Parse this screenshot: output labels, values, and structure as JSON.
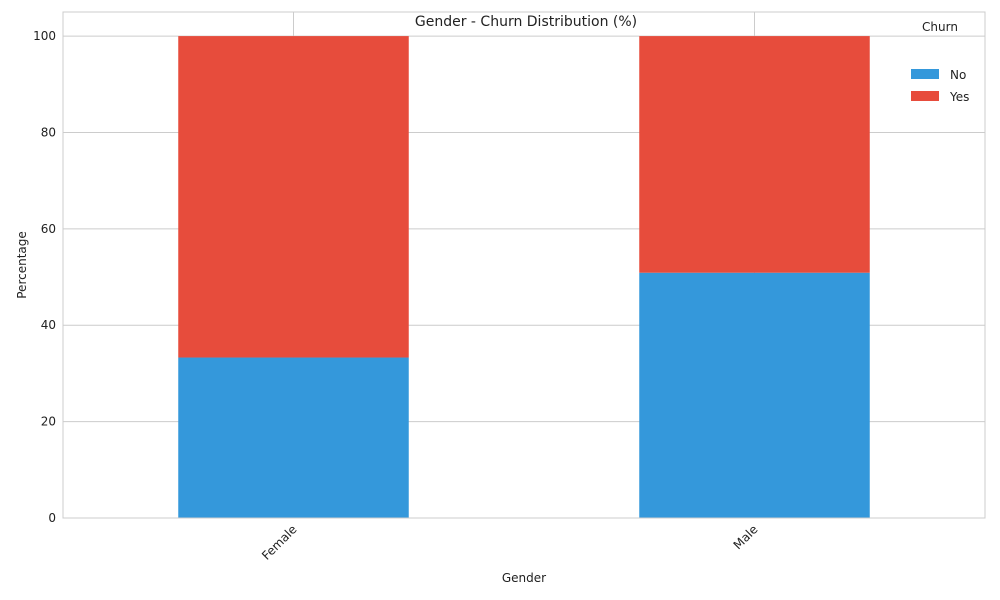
{
  "chart_data": {
    "type": "bar",
    "stacked": true,
    "title": "Gender - Churn Distribution (%)",
    "xlabel": "Gender",
    "ylabel": "Percentage",
    "categories": [
      "Female",
      "Male"
    ],
    "series": [
      {
        "name": "No",
        "color": "#3498db",
        "values": [
          33.3,
          50.9
        ]
      },
      {
        "name": "Yes",
        "color": "#e74c3c",
        "values": [
          66.7,
          49.1
        ]
      }
    ],
    "ylim": [
      0,
      105
    ],
    "yticks": [
      0,
      20,
      40,
      60,
      80,
      100
    ],
    "grid": true,
    "legend": {
      "title": "Churn",
      "position": "top-right"
    }
  }
}
